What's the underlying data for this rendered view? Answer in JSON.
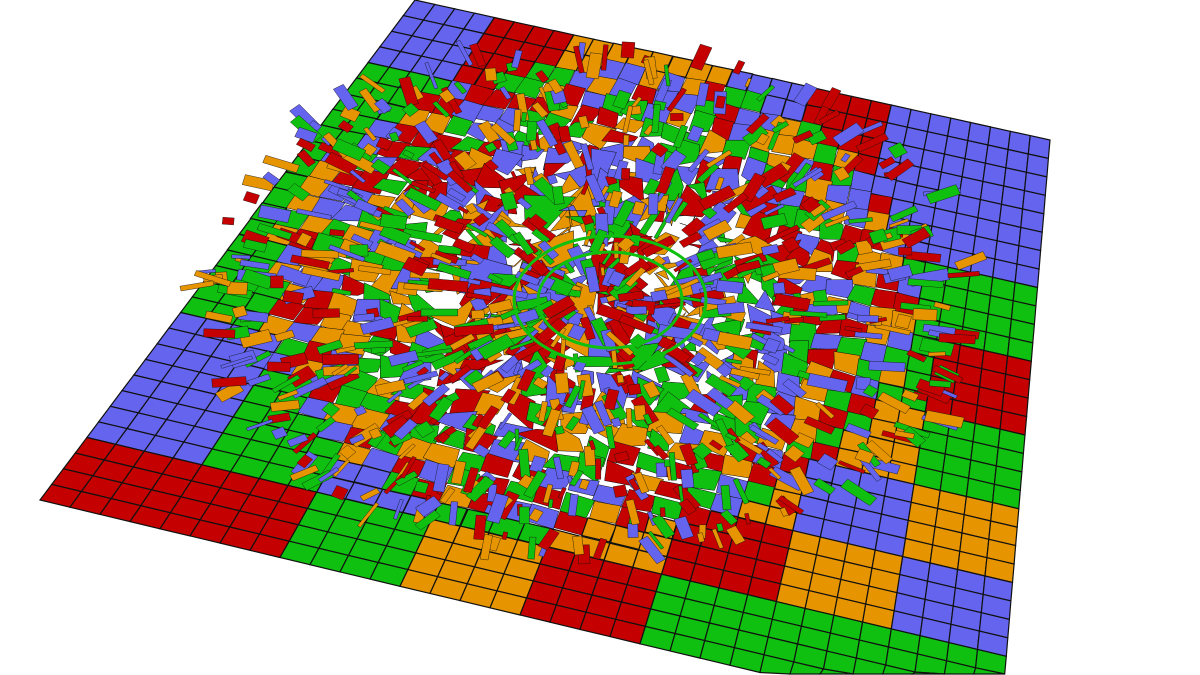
{
  "scene": {
    "background": "#ffffff",
    "palette": [
      "#6464ee",
      "#c40000",
      "#10c010",
      "#e69400"
    ],
    "grid_line_color": "#111111"
  }
}
